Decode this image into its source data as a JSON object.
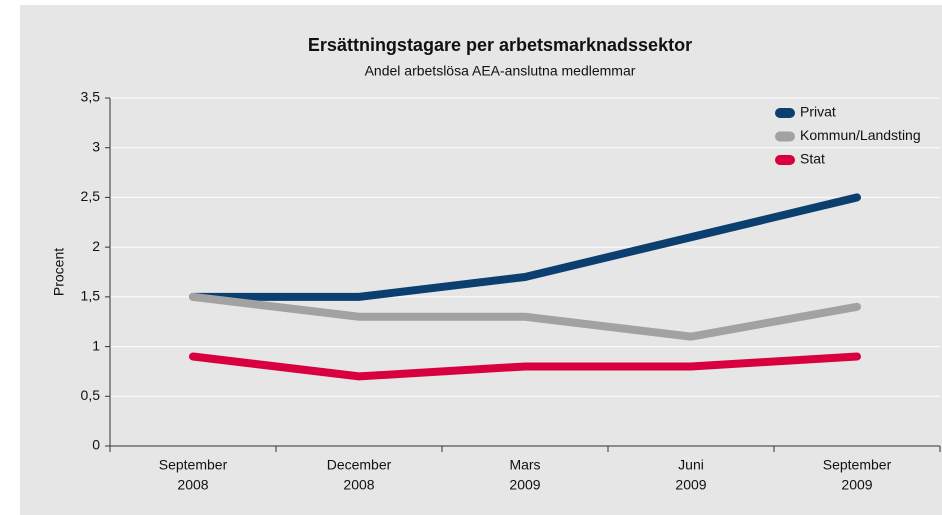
{
  "chart_data": {
    "type": "line",
    "title": "Ersättningstagare per arbetsmarknadssektor",
    "subtitle": "Andel arbetslösa AEA-anslutna medlemmar",
    "ylabel": "Procent",
    "categories": [
      [
        "September",
        "2008"
      ],
      [
        "December",
        "2008"
      ],
      [
        "Mars",
        "2009"
      ],
      [
        "Juni",
        "2009"
      ],
      [
        "September",
        "2009"
      ]
    ],
    "series": [
      {
        "name": "Privat",
        "color": "#0b3f6f",
        "values": [
          1.5,
          1.5,
          1.7,
          2.1,
          2.5
        ]
      },
      {
        "name": "Kommun/Landsting",
        "color": "#a2a2a2",
        "values": [
          1.5,
          1.3,
          1.3,
          1.1,
          1.4
        ]
      },
      {
        "name": "Stat",
        "color": "#d9003f",
        "values": [
          0.9,
          0.7,
          0.8,
          0.8,
          0.9
        ]
      }
    ],
    "ylim": [
      0,
      3.5
    ],
    "yticks": [
      0,
      {
        "value": 0.5,
        "label": "0,5"
      },
      1,
      {
        "value": 1.5,
        "label": "1,5"
      },
      2,
      {
        "value": 2.5,
        "label": "2,5"
      },
      3,
      {
        "value": 3.5,
        "label": "3,5"
      }
    ],
    "grid": true,
    "legend": "top-right"
  }
}
